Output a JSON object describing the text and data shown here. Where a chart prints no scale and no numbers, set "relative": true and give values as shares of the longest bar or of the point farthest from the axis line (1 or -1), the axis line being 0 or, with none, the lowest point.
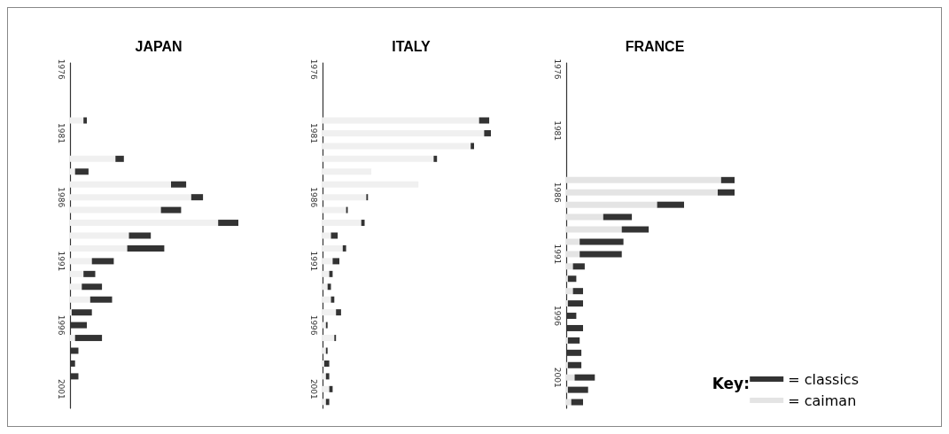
{
  "chart_data": [
    {
      "type": "bar",
      "title": "JAPAN",
      "orientation": "horizontal",
      "stacked": true,
      "relative": true,
      "categories": [
        "1976",
        null,
        null,
        null,
        null,
        "1981",
        null,
        null,
        null,
        null,
        "1986",
        null,
        null,
        null,
        null,
        "1991",
        null,
        null,
        null,
        null,
        "1996",
        null,
        null,
        null,
        null,
        "2001",
        null
      ],
      "series": [
        {
          "color": "#f0f0f0",
          "values": [
            0,
            0,
            0,
            0,
            0.08,
            0,
            0,
            0.27,
            0.03,
            0.6,
            0.72,
            0.54,
            0.88,
            0.35,
            0.34,
            0.13,
            0.08,
            0.07,
            0.12,
            0.01,
            0,
            0.03,
            0,
            0,
            0,
            0,
            0
          ]
        },
        {
          "color": "#333333",
          "values": [
            0,
            0,
            0,
            0,
            0.02,
            0,
            0,
            0.05,
            0.08,
            0.09,
            0.07,
            0.12,
            0.12,
            0.13,
            0.22,
            0.13,
            0.07,
            0.12,
            0.13,
            0.12,
            0.1,
            0.16,
            0.05,
            0.03,
            0.05,
            0,
            0
          ]
        }
      ]
    },
    {
      "type": "bar",
      "title": "ITALY",
      "orientation": "horizontal",
      "stacked": true,
      "relative": true,
      "categories": [
        "1976",
        null,
        null,
        null,
        null,
        "1981",
        null,
        null,
        null,
        null,
        "1986",
        null,
        null,
        null,
        null,
        "1991",
        null,
        null,
        null,
        null,
        "1996",
        null,
        null,
        null,
        null,
        "2001",
        null
      ],
      "series": [
        {
          "color": "#f0f0f0",
          "values": [
            0,
            0,
            0,
            0,
            0.93,
            0.96,
            0.88,
            0.66,
            0.29,
            0.57,
            0.26,
            0.14,
            0.23,
            0.05,
            0.12,
            0.06,
            0.04,
            0.03,
            0.05,
            0.08,
            0.02,
            0.07,
            0.02,
            0.01,
            0.02,
            0.04,
            0.02
          ]
        },
        {
          "color": "#333333",
          "values": [
            0,
            0,
            0,
            0,
            0.06,
            0.04,
            0.02,
            0.02,
            0,
            0,
            0.01,
            0.01,
            0.02,
            0.04,
            0.02,
            0.04,
            0.02,
            0.02,
            0.02,
            0.03,
            0.01,
            0.01,
            0.01,
            0.03,
            0.02,
            0.02,
            0.02
          ]
        }
      ]
    },
    {
      "type": "bar",
      "title": "FRANCE",
      "orientation": "horizontal",
      "stacked": true,
      "relative": true,
      "legend": "bottom right",
      "legend_title": "Key:",
      "categories": [
        "1976",
        null,
        null,
        null,
        null,
        "1981",
        null,
        null,
        null,
        null,
        "1986",
        null,
        null,
        null,
        null,
        "1991",
        null,
        null,
        null,
        null,
        "1996",
        null,
        null,
        null,
        null,
        "2001",
        null,
        null
      ],
      "series": [
        {
          "name": "= caiman",
          "color": "#e4e4e4",
          "values": [
            0,
            0,
            0,
            0,
            0,
            0,
            0,
            0,
            0,
            0.92,
            0.9,
            0.54,
            0.22,
            0.33,
            0.08,
            0.08,
            0.04,
            0.01,
            0.04,
            0.01,
            0,
            0,
            0.01,
            0,
            0.01,
            0.05,
            0.01,
            0.03
          ]
        },
        {
          "name": "= classics",
          "color": "#333333",
          "values": [
            0.005,
            0.005,
            0.005,
            0.005,
            0.005,
            0.005,
            0.005,
            0.005,
            0.005,
            0.08,
            0.1,
            0.16,
            0.17,
            0.16,
            0.26,
            0.25,
            0.07,
            0.05,
            0.06,
            0.09,
            0.06,
            0.1,
            0.07,
            0.09,
            0.08,
            0.12,
            0.12,
            0.07
          ]
        }
      ]
    }
  ]
}
